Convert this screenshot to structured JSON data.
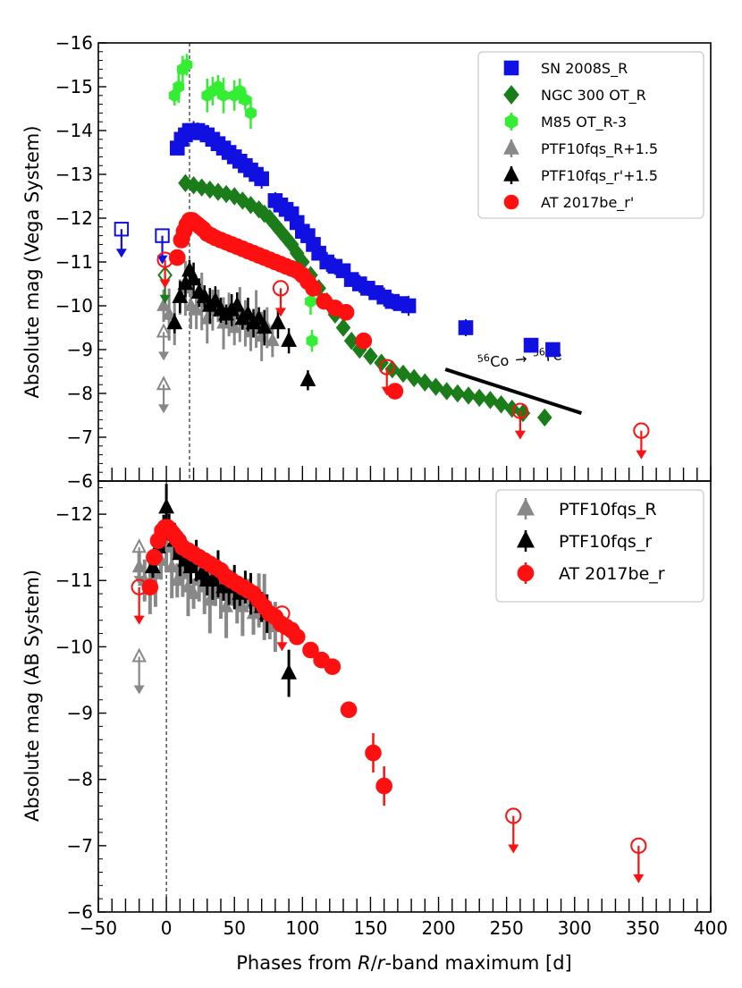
{
  "chart_data": [
    {
      "type": "scatter",
      "panel": "top",
      "ylabel": "Absolute mag (Vega System)",
      "xlim": [
        -50,
        400
      ],
      "ylim": [
        -6,
        -16
      ],
      "yticks": [
        "−16",
        "−15",
        "−14",
        "−13",
        "−12",
        "−11",
        "−10",
        "−9",
        "−8",
        "−7",
        "−6"
      ],
      "reference_phase": 17,
      "annotation": {
        "iso1": "56",
        "el1": "Co",
        "arrow": "→",
        "iso2": "56",
        "el2": "Fe"
      },
      "decline_line": {
        "x": [
          205,
          305
        ],
        "y": [
          -8.55,
          -7.55
        ]
      },
      "legend": [
        "SN 2008S_R",
        "NGC 300 OT_R",
        "M85 OT_R-3",
        "PTF10fqs_R+1.5",
        "PTF10fqs_r'+1.5",
        "AT 2017be_r'"
      ],
      "colors": {
        "sn2008s": "#1010e0",
        "ngc300": "#1a7d1a",
        "m85": "#33ee33",
        "ptfR": "#888888",
        "ptfr": "#000000",
        "at2017": "#ff1010"
      },
      "series": [
        {
          "name": "SN 2008S_R",
          "marker": "square",
          "x": [
            8,
            11,
            14,
            17,
            20,
            23,
            26,
            30,
            34,
            38,
            42,
            46,
            50,
            54,
            58,
            62,
            66,
            70,
            80,
            84,
            88,
            92,
            96,
            100,
            104,
            108,
            112,
            118,
            124,
            130,
            136,
            142,
            148,
            154,
            160,
            166,
            172,
            178,
            220,
            268,
            284
          ],
          "y": [
            -13.6,
            -13.8,
            -13.9,
            -14.0,
            -14.0,
            -14.0,
            -13.95,
            -13.9,
            -13.8,
            -13.7,
            -13.6,
            -13.5,
            -13.4,
            -13.3,
            -13.2,
            -13.1,
            -13.0,
            -12.9,
            -12.4,
            -12.3,
            -12.2,
            -12.1,
            -11.9,
            -11.7,
            -11.6,
            -11.4,
            -11.2,
            -11.0,
            -10.9,
            -10.8,
            -10.6,
            -10.5,
            -10.4,
            -10.3,
            -10.2,
            -10.1,
            -10.05,
            -10.0,
            -9.5,
            -9.1,
            -9.0
          ]
        },
        {
          "name": "NGC 300 OT_R",
          "marker": "diamond",
          "x": [
            14,
            20,
            26,
            32,
            38,
            44,
            50,
            56,
            62,
            68,
            72,
            76,
            80,
            84,
            88,
            92,
            96,
            100,
            106,
            112,
            118,
            124,
            130,
            136,
            142,
            150,
            158,
            166,
            174,
            182,
            190,
            198,
            206,
            214,
            222,
            230,
            238,
            246,
            254,
            262,
            278
          ],
          "y": [
            -12.8,
            -12.75,
            -12.7,
            -12.65,
            -12.6,
            -12.55,
            -12.5,
            -12.4,
            -12.3,
            -12.2,
            -12.1,
            -12.0,
            -11.85,
            -11.7,
            -11.55,
            -11.4,
            -11.2,
            -11.0,
            -10.7,
            -10.4,
            -10.1,
            -9.8,
            -9.5,
            -9.2,
            -9.0,
            -8.85,
            -8.7,
            -8.55,
            -8.45,
            -8.35,
            -8.25,
            -8.15,
            -8.05,
            -8.0,
            -7.95,
            -7.9,
            -7.85,
            -7.75,
            -7.65,
            -7.55,
            -7.45
          ]
        },
        {
          "name": "M85 OT_R-3",
          "marker": "hexagon",
          "x": [
            6,
            9,
            12,
            15,
            30,
            34,
            38,
            42,
            50,
            54,
            58,
            62,
            106,
            107
          ],
          "y": [
            -14.8,
            -15.0,
            -15.4,
            -15.5,
            -14.8,
            -14.9,
            -15.0,
            -14.8,
            -14.8,
            -14.9,
            -14.7,
            -14.4,
            -10.1,
            -9.2
          ]
        },
        {
          "name": "PTF10fqs_R+1.5",
          "marker": "triangle",
          "x": [
            -2,
            2,
            6,
            10,
            14,
            18,
            22,
            26,
            30,
            34,
            38,
            42,
            46,
            50,
            54,
            58,
            62,
            66,
            70,
            74,
            78
          ],
          "y": [
            -10.0,
            -9.8,
            -9.6,
            -10.2,
            -10.4,
            -10.0,
            -9.9,
            -10.1,
            -9.7,
            -9.9,
            -10.0,
            -9.6,
            -9.8,
            -9.5,
            -9.8,
            -9.6,
            -9.4,
            -9.7,
            -9.3,
            -9.5,
            -9.2
          ]
        },
        {
          "name": "PTF10fqs_r'+1.5",
          "marker": "triangle",
          "x": [
            6,
            10,
            14,
            17,
            20,
            24,
            28,
            32,
            36,
            40,
            44,
            48,
            52,
            56,
            60,
            64,
            68,
            72,
            82,
            90,
            104
          ],
          "y": [
            -9.6,
            -10.2,
            -10.5,
            -10.8,
            -10.6,
            -10.3,
            -10.2,
            -10.0,
            -10.1,
            -9.9,
            -9.8,
            -9.9,
            -10.0,
            -9.7,
            -9.8,
            -9.6,
            -9.7,
            -9.5,
            -9.6,
            -9.2,
            -8.3
          ]
        },
        {
          "name": "AT 2017be_r'",
          "marker": "circle",
          "x": [
            8,
            11,
            13,
            15,
            17,
            19,
            21,
            23,
            25,
            27,
            30,
            33,
            36,
            40,
            44,
            48,
            52,
            56,
            60,
            64,
            68,
            72,
            76,
            80,
            84,
            88,
            92,
            96,
            100,
            104,
            108,
            116,
            124,
            132,
            145,
            168
          ],
          "y": [
            -11.1,
            -11.5,
            -11.7,
            -11.85,
            -11.95,
            -11.95,
            -11.9,
            -11.85,
            -11.8,
            -11.75,
            -11.65,
            -11.6,
            -11.55,
            -11.5,
            -11.45,
            -11.4,
            -11.35,
            -11.3,
            -11.25,
            -11.2,
            -11.15,
            -11.1,
            -11.05,
            -11.0,
            -10.95,
            -10.9,
            -10.85,
            -10.8,
            -10.7,
            -10.55,
            -10.4,
            -10.1,
            -9.95,
            -9.85,
            -9.2,
            -8.05
          ]
        }
      ],
      "upper_limits": [
        {
          "series": "SN 2008S_R",
          "x": [
            -33,
            -3
          ],
          "y": [
            -11.75,
            -11.6
          ]
        },
        {
          "series": "NGC 300 OT_R",
          "x": [
            -1
          ],
          "y": [
            -10.7
          ]
        },
        {
          "series": "PTF10fqs_R+1.5",
          "x": [
            -2,
            -2
          ],
          "y": [
            -9.4,
            -8.2
          ]
        },
        {
          "series": "AT 2017be_r'",
          "x": [
            -1,
            84,
            162,
            260,
            349
          ],
          "y": [
            -11.05,
            -10.4,
            -8.6,
            -7.6,
            -7.15
          ]
        }
      ]
    },
    {
      "type": "scatter",
      "panel": "bottom",
      "xlabel_pre": "Phases from ",
      "xlabel_R": "R",
      "xlabel_mid": "/",
      "xlabel_r": "r",
      "xlabel_post": "-band maximum [d]",
      "ylabel": "Absolute mag (AB System)",
      "xlim": [
        -50,
        400
      ],
      "ylim": [
        -6,
        -12.5
      ],
      "yticks": [
        "−12",
        "−11",
        "−10",
        "−9",
        "−8",
        "−7",
        "−6"
      ],
      "xticks": [
        "−50",
        "0",
        "50",
        "100",
        "150",
        "200",
        "250",
        "300",
        "350",
        "400"
      ],
      "reference_phase": 0,
      "legend": [
        "PTF10fqs_R",
        "PTF10fqs_r",
        "AT 2017be_r"
      ],
      "series": [
        {
          "name": "PTF10fqs_R",
          "marker": "triangle",
          "x": [
            -20,
            -16,
            -12,
            -8,
            -4,
            0,
            4,
            8,
            12,
            16,
            20,
            24,
            28,
            32,
            36,
            40,
            44,
            48,
            52,
            56,
            60,
            64,
            68,
            72,
            76,
            80
          ],
          "y": [
            -11.2,
            -11.0,
            -10.9,
            -11.1,
            -11.3,
            -11.5,
            -11.2,
            -11.0,
            -11.1,
            -10.9,
            -10.8,
            -11.0,
            -10.9,
            -10.7,
            -10.9,
            -10.8,
            -10.6,
            -10.9,
            -10.7,
            -10.6,
            -10.8,
            -10.5,
            -10.7,
            -10.6,
            -10.4,
            -10.3
          ]
        },
        {
          "name": "PTF10fqs_r",
          "marker": "triangle",
          "x": [
            -10,
            -6,
            -2,
            0,
            2,
            6,
            10,
            14,
            18,
            22,
            26,
            30,
            34,
            38,
            42,
            46,
            50,
            54,
            58,
            62,
            66,
            70,
            74,
            90
          ],
          "y": [
            -11.2,
            -11.5,
            -11.7,
            -12.1,
            -11.8,
            -11.6,
            -11.4,
            -11.3,
            -11.2,
            -11.3,
            -11.1,
            -11.0,
            -11.0,
            -11.1,
            -10.9,
            -10.9,
            -10.9,
            -10.8,
            -10.9,
            -10.8,
            -10.7,
            -10.6,
            -10.5,
            -9.6
          ]
        },
        {
          "name": "AT 2017be_r",
          "marker": "circle",
          "x": [
            -12,
            -9,
            -6,
            -3,
            -1,
            1,
            3,
            5,
            7,
            9,
            12,
            16,
            20,
            24,
            28,
            32,
            36,
            40,
            44,
            48,
            52,
            56,
            60,
            64,
            68,
            72,
            76,
            80,
            84,
            88,
            92,
            96,
            106,
            114,
            122,
            134,
            152,
            160
          ],
          "y": [
            -10.9,
            -11.35,
            -11.6,
            -11.75,
            -11.8,
            -11.8,
            -11.75,
            -11.7,
            -11.65,
            -11.6,
            -11.5,
            -11.45,
            -11.4,
            -11.35,
            -11.3,
            -11.25,
            -11.2,
            -11.15,
            -11.05,
            -11.0,
            -10.95,
            -10.9,
            -10.85,
            -10.8,
            -10.7,
            -10.6,
            -10.5,
            -10.45,
            -10.35,
            -10.3,
            -10.25,
            -10.15,
            -9.95,
            -9.8,
            -9.7,
            -9.05,
            -8.4,
            -7.9
          ]
        }
      ],
      "upper_limits": [
        {
          "series": "PTF10fqs_R",
          "x": [
            -20,
            -20
          ],
          "y": [
            -11.5,
            -9.85
          ]
        },
        {
          "series": "AT 2017be_r",
          "x": [
            -20,
            85,
            255,
            347
          ],
          "y": [
            -10.9,
            -10.5,
            -7.45,
            -7.0
          ]
        }
      ]
    }
  ]
}
